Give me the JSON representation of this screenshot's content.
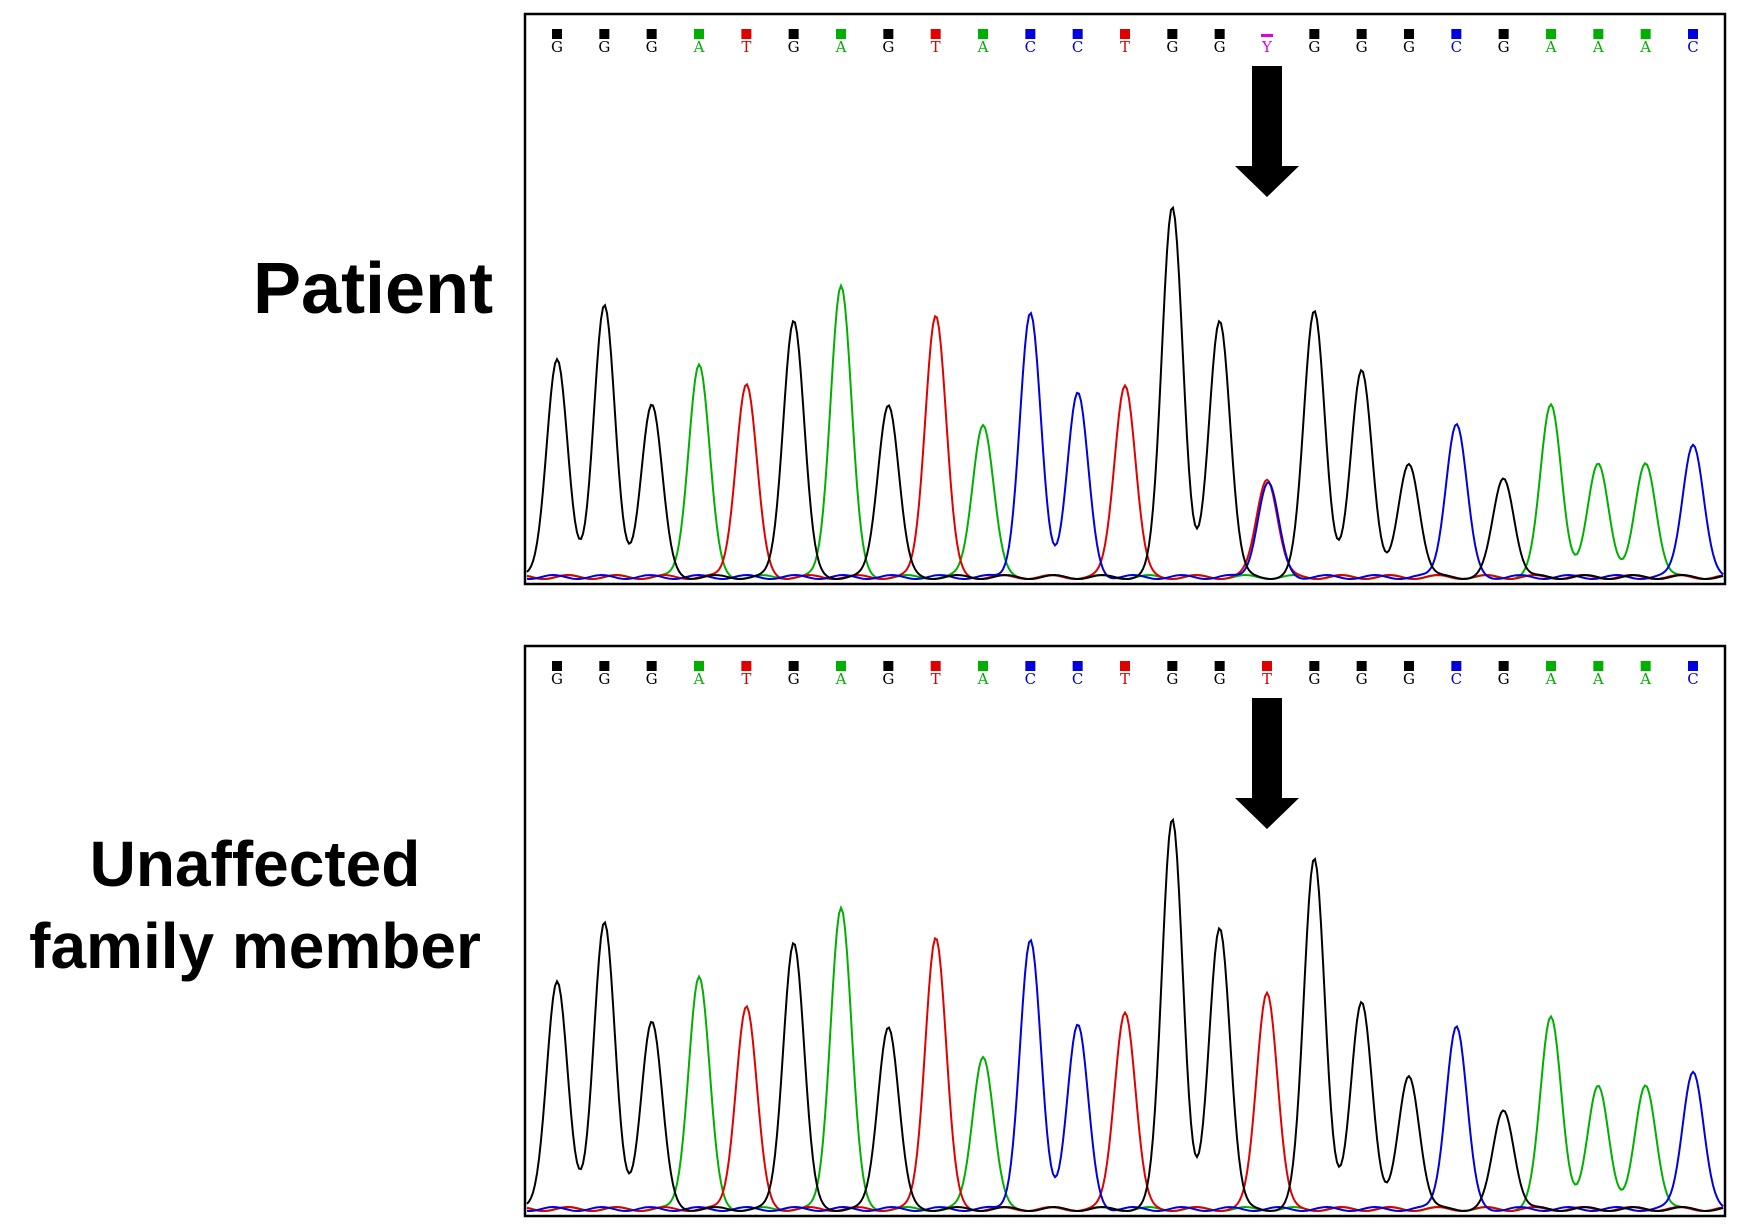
{
  "panels": [
    {
      "label_lines": [
        "Patient"
      ]
    },
    {
      "label_lines": [
        "Unaffected",
        "family member"
      ]
    }
  ],
  "colors": {
    "G": "#000000",
    "A": "#00b000",
    "T": "#e00000",
    "C": "#0000e0",
    "Y": "#e000e0"
  },
  "chart_data": [
    {
      "type": "line",
      "subtype": "sanger-chromatogram",
      "title": "Patient",
      "sequence": [
        "G",
        "G",
        "G",
        "A",
        "T",
        "G",
        "A",
        "G",
        "T",
        "A",
        "C",
        "C",
        "T",
        "G",
        "G",
        "Y",
        "G",
        "G",
        "G",
        "C",
        "G",
        "A",
        "A",
        "A",
        "C"
      ],
      "peak_heights": [
        {
          "base": "G",
          "height": 0.44
        },
        {
          "base": "G",
          "height": 0.55
        },
        {
          "base": "G",
          "height": 0.35
        },
        {
          "base": "A",
          "height": 0.43
        },
        {
          "base": "T",
          "height": 0.39
        },
        {
          "base": "G",
          "height": 0.52
        },
        {
          "base": "A",
          "height": 0.59
        },
        {
          "base": "G",
          "height": 0.35
        },
        {
          "base": "T",
          "height": 0.53
        },
        {
          "base": "A",
          "height": 0.31
        },
        {
          "base": "C",
          "height": 0.53
        },
        {
          "base": "C",
          "height": 0.37
        },
        {
          "base": "T",
          "height": 0.39
        },
        {
          "base": "G",
          "height": 0.75
        },
        {
          "base": "G",
          "height": 0.52
        },
        {
          "base": "T",
          "height": 0.2,
          "second": {
            "base": "C",
            "height": 0.19
          }
        },
        {
          "base": "G",
          "height": 0.54
        },
        {
          "base": "G",
          "height": 0.42
        },
        {
          "base": "G",
          "height": 0.23
        },
        {
          "base": "C",
          "height": 0.31
        },
        {
          "base": "G",
          "height": 0.2
        },
        {
          "base": "A",
          "height": 0.35
        },
        {
          "base": "A",
          "height": 0.23
        },
        {
          "base": "A",
          "height": 0.23
        },
        {
          "base": "C",
          "height": 0.27
        }
      ],
      "arrow_at_position": 16
    },
    {
      "type": "line",
      "subtype": "sanger-chromatogram",
      "title": "Unaffected family member",
      "sequence": [
        "G",
        "G",
        "G",
        "A",
        "T",
        "G",
        "A",
        "G",
        "T",
        "A",
        "C",
        "C",
        "T",
        "G",
        "G",
        "T",
        "G",
        "G",
        "G",
        "C",
        "G",
        "A",
        "A",
        "A",
        "C"
      ],
      "peak_heights": [
        {
          "base": "G",
          "height": 0.46
        },
        {
          "base": "G",
          "height": 0.58
        },
        {
          "base": "G",
          "height": 0.38
        },
        {
          "base": "A",
          "height": 0.47
        },
        {
          "base": "T",
          "height": 0.41
        },
        {
          "base": "G",
          "height": 0.54
        },
        {
          "base": "A",
          "height": 0.61
        },
        {
          "base": "G",
          "height": 0.37
        },
        {
          "base": "T",
          "height": 0.55
        },
        {
          "base": "A",
          "height": 0.31
        },
        {
          "base": "C",
          "height": 0.54
        },
        {
          "base": "C",
          "height": 0.37
        },
        {
          "base": "T",
          "height": 0.4
        },
        {
          "base": "G",
          "height": 0.79
        },
        {
          "base": "G",
          "height": 0.57
        },
        {
          "base": "T",
          "height": 0.44
        },
        {
          "base": "G",
          "height": 0.71
        },
        {
          "base": "G",
          "height": 0.42
        },
        {
          "base": "G",
          "height": 0.27
        },
        {
          "base": "C",
          "height": 0.37
        },
        {
          "base": "G",
          "height": 0.2
        },
        {
          "base": "A",
          "height": 0.39
        },
        {
          "base": "A",
          "height": 0.25
        },
        {
          "base": "A",
          "height": 0.25
        },
        {
          "base": "C",
          "height": 0.28
        }
      ],
      "arrow_at_position": 16
    }
  ]
}
